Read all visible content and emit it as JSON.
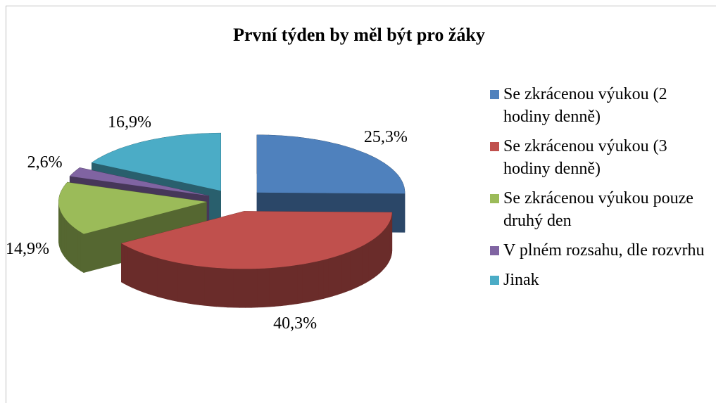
{
  "chart_data": {
    "type": "pie",
    "title": "První týden by měl být pro žáky",
    "categories": [
      "Se zkrácenou výukou (2 hodiny denně)",
      "Se zkrácenou výukou (3 hodiny denně)",
      "Se zkrácenou výukou pouze druhý den",
      "V plném rozsahu, dle rozvrhu",
      "Jinak"
    ],
    "values": [
      25.3,
      40.3,
      14.9,
      2.6,
      16.9
    ],
    "value_labels": [
      "25,3%",
      "40,3%",
      "14,9%",
      "2,6%",
      "16,9%"
    ],
    "colors": [
      "#4f81bd",
      "#c0504d",
      "#9bbb59",
      "#8064a2",
      "#4bacc6"
    ],
    "legend": "right"
  }
}
